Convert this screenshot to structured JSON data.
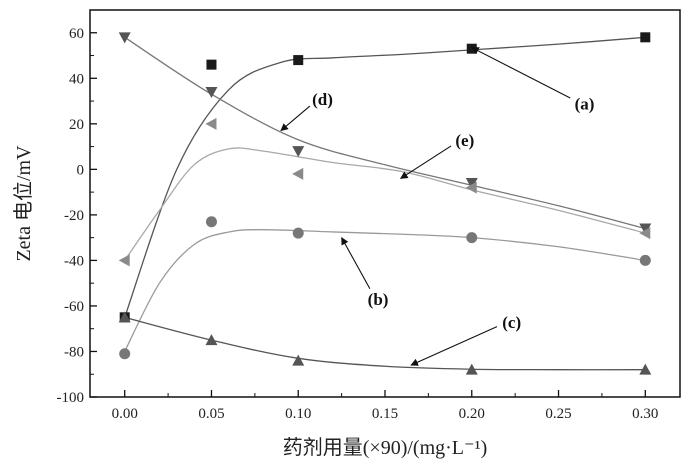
{
  "chart_data": {
    "type": "scatter",
    "xlabel": "药剂用量(×90)/(mg·L⁻¹)",
    "ylabel": "Zeta 电位/mV",
    "xlim": [
      -0.02,
      0.32
    ],
    "ylim": [
      -100,
      70
    ],
    "xticks": [
      "0.00",
      "0.05",
      "0.10",
      "0.15",
      "0.20",
      "0.25",
      "0.30"
    ],
    "yticks": [
      "-100",
      "-80",
      "-60",
      "-40",
      "-20",
      "0",
      "20",
      "40",
      "60"
    ],
    "grid": false,
    "legend": "none",
    "series": [
      {
        "name": "(a)",
        "marker": "square",
        "color": "#1a1a1a",
        "curve_color": "#555555",
        "x": [
          0.0,
          0.05,
          0.1,
          0.2,
          0.3
        ],
        "y": [
          -65,
          46,
          48,
          53,
          58
        ],
        "fit": [
          [
            0.0,
            -65
          ],
          [
            0.03,
            0
          ],
          [
            0.06,
            35
          ],
          [
            0.09,
            47
          ],
          [
            0.12,
            49
          ],
          [
            0.16,
            50.5
          ],
          [
            0.2,
            52.5
          ],
          [
            0.25,
            55
          ],
          [
            0.3,
            58
          ]
        ]
      },
      {
        "name": "(b)",
        "marker": "circle",
        "color": "#777777",
        "curve_color": "#9a9a9a",
        "x": [
          0.0,
          0.05,
          0.1,
          0.2,
          0.3
        ],
        "y": [
          -81,
          -23,
          -28,
          -30,
          -40
        ],
        "fit": [
          [
            0.0,
            -80
          ],
          [
            0.02,
            -50
          ],
          [
            0.04,
            -33
          ],
          [
            0.06,
            -27.5
          ],
          [
            0.08,
            -26.5
          ],
          [
            0.12,
            -27.5
          ],
          [
            0.16,
            -28.5
          ],
          [
            0.2,
            -30
          ],
          [
            0.25,
            -34
          ],
          [
            0.3,
            -40
          ]
        ]
      },
      {
        "name": "(c)",
        "marker": "triangle-up",
        "color": "#555555",
        "curve_color": "#555555",
        "x": [
          0.0,
          0.05,
          0.1,
          0.2,
          0.3
        ],
        "y": [
          -65,
          -75,
          -84,
          -88,
          -88
        ],
        "fit": [
          [
            0.0,
            -65
          ],
          [
            0.05,
            -75
          ],
          [
            0.1,
            -83
          ],
          [
            0.15,
            -86.5
          ],
          [
            0.2,
            -87.8
          ],
          [
            0.25,
            -88
          ],
          [
            0.3,
            -88
          ]
        ]
      },
      {
        "name": "(d)",
        "marker": "triangle-down",
        "color": "#555555",
        "curve_color": "#777777",
        "x": [
          0.0,
          0.05,
          0.1,
          0.2,
          0.3
        ],
        "y": [
          58,
          34,
          8,
          -6,
          -26
        ],
        "fit": [
          [
            0.0,
            58
          ],
          [
            0.05,
            33
          ],
          [
            0.1,
            13
          ],
          [
            0.15,
            2
          ],
          [
            0.2,
            -7
          ],
          [
            0.25,
            -16
          ],
          [
            0.3,
            -26
          ]
        ]
      },
      {
        "name": "(e)",
        "marker": "triangle-left",
        "color": "#8a8a8a",
        "curve_color": "#a8a8a8",
        "x": [
          0.0,
          0.05,
          0.1,
          0.2,
          0.3
        ],
        "y": [
          -40,
          20,
          -2,
          -8,
          -28
        ],
        "fit": [
          [
            0.0,
            -40
          ],
          [
            0.02,
            -18
          ],
          [
            0.04,
            2
          ],
          [
            0.06,
            9
          ],
          [
            0.08,
            8
          ],
          [
            0.12,
            3
          ],
          [
            0.16,
            -1
          ],
          [
            0.2,
            -9
          ],
          [
            0.25,
            -18
          ],
          [
            0.3,
            -28
          ]
        ]
      }
    ],
    "annotations": [
      {
        "label": "(a)",
        "text_at": [
          0.265,
          29
        ],
        "arrow_to": [
          0.2,
          53.5
        ]
      },
      {
        "label": "(b)",
        "text_at": [
          0.146,
          -57
        ],
        "arrow_to": [
          0.125,
          -30
        ]
      },
      {
        "label": "(c)",
        "text_at": [
          0.223,
          -67
        ],
        "arrow_to": [
          0.165,
          -86
        ]
      },
      {
        "label": "(d)",
        "text_at": [
          0.114,
          31
        ],
        "arrow_to": [
          0.09,
          17
        ]
      },
      {
        "label": "(e)",
        "text_at": [
          0.196,
          13
        ],
        "arrow_to": [
          0.159,
          -4
        ]
      }
    ]
  }
}
